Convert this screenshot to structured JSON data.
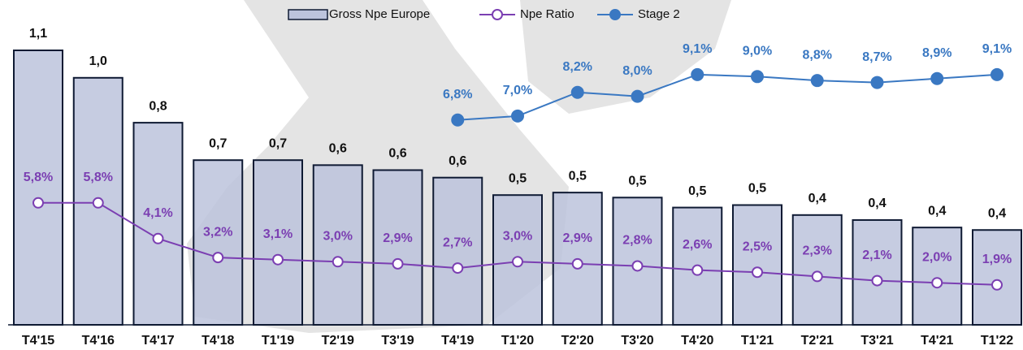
{
  "chart_data": {
    "type": "bar",
    "categories": [
      "T4'15",
      "T4'16",
      "T4'17",
      "T4'18",
      "T1'19",
      "T2'19",
      "T3'19",
      "T4'19",
      "T1'20",
      "T2'20",
      "T3'20",
      "T4'20",
      "T1'21",
      "T2'21",
      "T3'21",
      "T4'21",
      "T1'22"
    ],
    "series": [
      {
        "name": "Gross Npe Europe",
        "type": "bar",
        "color": "#bcc3dc",
        "stroke": "#0f1a33",
        "values": [
          1.1,
          0.99,
          0.81,
          0.66,
          0.66,
          0.64,
          0.62,
          0.59,
          0.52,
          0.53,
          0.51,
          0.47,
          0.48,
          0.44,
          0.42,
          0.39,
          0.38
        ],
        "value_labels": [
          "1,1",
          "1,0",
          "0,8",
          "0,7",
          "0,7",
          "0,6",
          "0,6",
          "0,6",
          "0,5",
          "0,5",
          "0,5",
          "0,5",
          "0,5",
          "0,4",
          "0,4",
          "0,4",
          "0,4"
        ]
      },
      {
        "name": "Npe Ratio",
        "type": "line",
        "color": "#7b3fb2",
        "marker": "hollow",
        "values": [
          5.8,
          5.8,
          4.1,
          3.2,
          3.1,
          3.0,
          2.9,
          2.7,
          3.0,
          2.9,
          2.8,
          2.6,
          2.5,
          2.3,
          2.1,
          2.0,
          1.9
        ],
        "value_labels": [
          "5,8%",
          "5,8%",
          "4,1%",
          "3,2%",
          "3,1%",
          "3,0%",
          "2,9%",
          "2,7%",
          "3,0%",
          "2,9%",
          "2,8%",
          "2,6%",
          "2,5%",
          "2,3%",
          "2,1%",
          "2,0%",
          "1,9%"
        ]
      },
      {
        "name": "Stage 2",
        "type": "line",
        "color": "#3a78c2",
        "marker": "filled",
        "values": [
          null,
          null,
          null,
          null,
          null,
          null,
          null,
          6.8,
          7.0,
          8.2,
          8.0,
          9.1,
          9.0,
          8.8,
          8.7,
          8.9,
          9.1
        ],
        "value_labels": [
          null,
          null,
          null,
          null,
          null,
          null,
          null,
          "6,8%",
          "7,0%",
          "8,2%",
          "8,0%",
          "9,1%",
          "9,0%",
          "8,8%",
          "8,7%",
          "8,9%",
          "9,1%"
        ]
      }
    ]
  }
}
